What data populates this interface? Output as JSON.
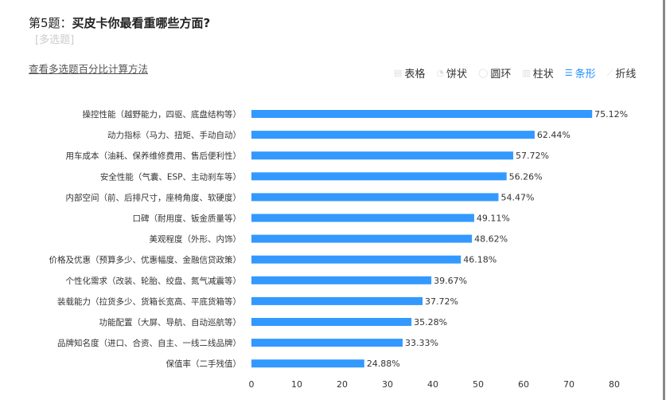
{
  "header": {
    "prefix": "第5题：",
    "question": "买皮卡你最看重哪些方面?",
    "type": "[多选题]",
    "link": "查看多选题百分比计算方法"
  },
  "tabs": [
    {
      "label": "表格",
      "icon": "table-icon",
      "active": false
    },
    {
      "label": "饼状",
      "icon": "pie-icon",
      "active": false
    },
    {
      "label": "圆环",
      "icon": "ring-icon",
      "active": false
    },
    {
      "label": "柱状",
      "icon": "column-icon",
      "active": false
    },
    {
      "label": "条形",
      "icon": "bar-icon",
      "active": true
    },
    {
      "label": "折线",
      "icon": "line-icon",
      "active": false
    }
  ],
  "chart_data": {
    "type": "bar",
    "orientation": "horizontal",
    "categories": [
      "操控性能（越野能力，四驱、底盘结构等）",
      "动力指标（马力、扭矩、手动自动）",
      "用车成本（油耗、保养维修费用、售后便利性）",
      "安全性能（气囊、ESP、主动刹车等）",
      "内部空间（前、后排尺寸，座椅角度、软硬度）",
      "口碑（耐用度、钣金质量等）",
      "美观程度（外形、内饰）",
      "价格及优惠（预算多少、优惠幅度、金融信贷政策）",
      "个性化需求（改装、轮胎、绞盘、氮气减震等）",
      "装载能力（拉货多少、货箱长宽高、平底货箱等）",
      "功能配置（大屏、导航、自动巡航等）",
      "品牌知名度（进口、合资、自主、一线二线品牌）",
      "保值率（二手残值）"
    ],
    "values": [
      75.12,
      62.44,
      57.72,
      56.26,
      54.47,
      49.11,
      48.62,
      46.18,
      39.67,
      37.72,
      35.28,
      33.33,
      24.88
    ],
    "labels": [
      "75.12%",
      "62.44%",
      "57.72%",
      "56.26%",
      "54.47%",
      "49.11%",
      "48.62%",
      "46.18%",
      "39.67%",
      "37.72%",
      "35.28%",
      "33.33%",
      "24.88%"
    ],
    "xlim": [
      0,
      80
    ],
    "xticks": [
      "0",
      "10",
      "20",
      "30",
      "40",
      "50",
      "60",
      "70",
      "80"
    ],
    "color": "#3399ff",
    "grid": false
  }
}
